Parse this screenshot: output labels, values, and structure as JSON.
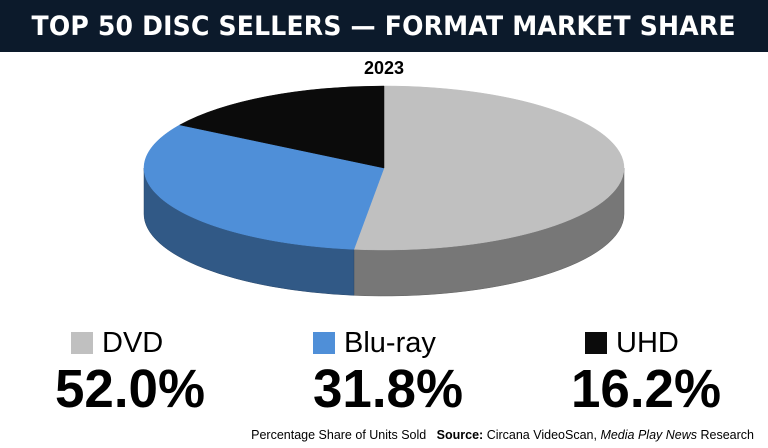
{
  "title": "TOP 50 DISC SELLERS — FORMAT MARKET SHARE",
  "year": "2023",
  "footer": {
    "text": "Percentage Share of Units Sold",
    "source_label": "Source:",
    "source_text": "Circana VideoScan,",
    "publication": "Media Play News",
    "research": "Research"
  },
  "colors": {
    "title_bg": "#0c1a2b",
    "dvd": "#c0c0c0",
    "bluray": "#4f8fd8",
    "uhd": "#0b0b0b"
  },
  "chart_data": {
    "type": "pie",
    "title": "2023",
    "style": "3d",
    "slices": [
      {
        "label": "DVD",
        "value": 52.0,
        "display": "52.0%",
        "color": "#c0c0c0"
      },
      {
        "label": "Blu-ray",
        "value": 31.8,
        "display": "31.8%",
        "color": "#4f8fd8"
      },
      {
        "label": "UHD",
        "value": 16.2,
        "display": "16.2%",
        "color": "#0b0b0b"
      }
    ]
  }
}
